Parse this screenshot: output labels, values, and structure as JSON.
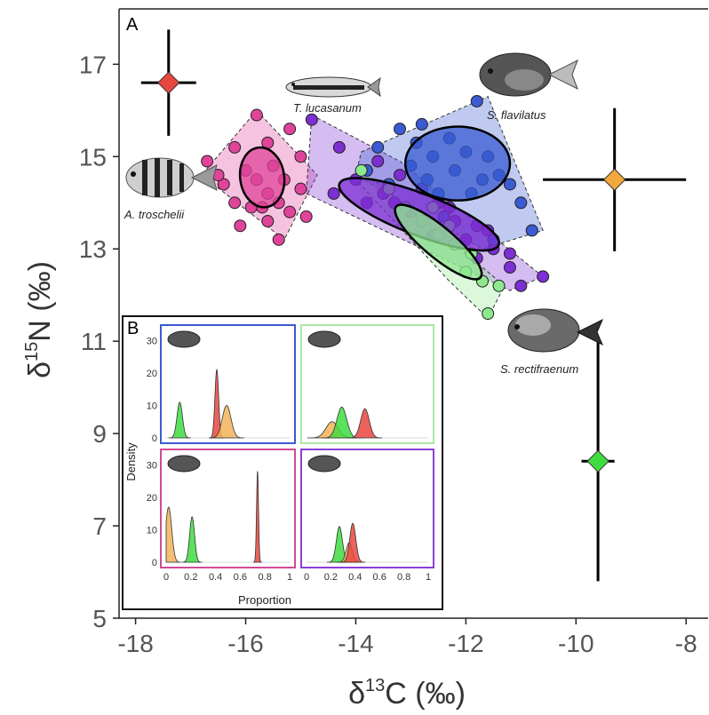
{
  "chart_data": [
    {
      "panel": "A",
      "type": "scatter",
      "xlabel": "δ13C (‰)",
      "ylabel": "δ15N (‰)",
      "xlim": [
        -18.3,
        -7.6
      ],
      "ylim": [
        5,
        18.2
      ],
      "xticks": [
        -18,
        -16,
        -14,
        -12,
        -10,
        -8
      ],
      "yticks": [
        5,
        7,
        9,
        11,
        13,
        15,
        17
      ],
      "xtick_labels": [
        "-18",
        "-16",
        "-14",
        "-12",
        "-10",
        "-8"
      ],
      "ytick_labels": [
        "5",
        "7",
        "9",
        "11",
        "13",
        "15",
        "17"
      ],
      "species": [
        {
          "name": "A. troschelii",
          "color": "#e0449a",
          "points": [
            [
              -15.8,
              15.9
            ],
            [
              -15.2,
              15.6
            ],
            [
              -16.2,
              15.2
            ],
            [
              -15.6,
              15.3
            ],
            [
              -15.0,
              15.0
            ],
            [
              -16.7,
              14.9
            ],
            [
              -16.0,
              14.7
            ],
            [
              -15.5,
              14.8
            ],
            [
              -15.3,
              14.5
            ],
            [
              -15.8,
              14.5
            ],
            [
              -16.4,
              14.4
            ],
            [
              -15.0,
              14.3
            ],
            [
              -16.2,
              14.0
            ],
            [
              -15.6,
              14.2
            ],
            [
              -15.4,
              14.0
            ],
            [
              -15.9,
              13.9
            ],
            [
              -15.2,
              13.8
            ],
            [
              -14.9,
              13.7
            ],
            [
              -15.6,
              13.6
            ],
            [
              -16.1,
              13.5
            ],
            [
              -15.4,
              13.2
            ],
            [
              -16.5,
              14.6
            ],
            [
              -15.7,
              13.9
            ]
          ],
          "hull": [
            [
              -15.8,
              16.0
            ],
            [
              -14.7,
              14.6
            ],
            [
              -15.3,
              13.2
            ],
            [
              -16.8,
              14.6
            ]
          ],
          "ellipse": {
            "cx": -15.7,
            "cy": 14.55,
            "rx": 0.4,
            "ry": 0.65,
            "angle": 8
          }
        },
        {
          "name": "T. lucasanum",
          "color": "#7c2fd3",
          "points": [
            [
              -14.8,
              15.8
            ],
            [
              -14.3,
              15.2
            ],
            [
              -13.6,
              14.9
            ],
            [
              -13.2,
              14.6
            ],
            [
              -14.0,
              14.5
            ],
            [
              -12.8,
              14.3
            ],
            [
              -13.5,
              14.2
            ],
            [
              -12.5,
              14.0
            ],
            [
              -13.0,
              13.8
            ],
            [
              -12.2,
              13.6
            ],
            [
              -11.8,
              13.5
            ],
            [
              -12.0,
              13.2
            ],
            [
              -11.5,
              13.0
            ],
            [
              -11.2,
              12.6
            ],
            [
              -11.0,
              12.2
            ],
            [
              -10.6,
              12.4
            ],
            [
              -11.8,
              12.8
            ],
            [
              -12.6,
              13.3
            ],
            [
              -13.8,
              14.0
            ],
            [
              -14.4,
              14.2
            ],
            [
              -13.3,
              14.0
            ],
            [
              -12.3,
              13.9
            ],
            [
              -11.6,
              13.4
            ],
            [
              -11.2,
              12.9
            ]
          ],
          "hull": [
            [
              -14.8,
              15.9
            ],
            [
              -13.2,
              14.9
            ],
            [
              -10.6,
              12.4
            ],
            [
              -11.2,
              12.1
            ],
            [
              -14.9,
              14.2
            ]
          ],
          "ellipse": {
            "cx": -12.85,
            "cy": 13.75,
            "rx": 1.55,
            "ry": 0.45,
            "angle": -21
          }
        },
        {
          "name": "S. flavilatus",
          "color": "#3a5bd1",
          "points": [
            [
              -11.8,
              16.2
            ],
            [
              -13.2,
              15.6
            ],
            [
              -12.8,
              15.7
            ],
            [
              -12.3,
              15.4
            ],
            [
              -13.6,
              15.2
            ],
            [
              -12.0,
              15.1
            ],
            [
              -11.6,
              15.0
            ],
            [
              -12.6,
              15.0
            ],
            [
              -13.0,
              14.8
            ],
            [
              -12.2,
              14.7
            ],
            [
              -11.4,
              14.6
            ],
            [
              -13.4,
              14.4
            ],
            [
              -12.7,
              14.5
            ],
            [
              -11.2,
              14.4
            ],
            [
              -11.9,
              14.2
            ],
            [
              -11.0,
              14.0
            ],
            [
              -10.8,
              13.4
            ],
            [
              -11.5,
              13.2
            ],
            [
              -12.4,
              13.7
            ],
            [
              -13.8,
              14.7
            ],
            [
              -12.5,
              14.2
            ],
            [
              -11.7,
              14.5
            ],
            [
              -12.9,
              15.3
            ]
          ],
          "hull": [
            [
              -13.9,
              15.1
            ],
            [
              -11.6,
              16.3
            ],
            [
              -10.6,
              13.4
            ],
            [
              -11.7,
              13.0
            ],
            [
              -14.0,
              14.6
            ]
          ],
          "ellipse": {
            "cx": -12.15,
            "cy": 14.85,
            "rx": 0.95,
            "ry": 0.8,
            "angle": 0
          }
        },
        {
          "name": "S. rectifraenum",
          "color": "#8ee88e",
          "points": [
            [
              -13.9,
              14.7
            ],
            [
              -13.4,
              14.3
            ],
            [
              -13.1,
              13.9
            ],
            [
              -12.8,
              13.6
            ],
            [
              -12.5,
              13.3
            ],
            [
              -12.2,
              13.1
            ],
            [
              -11.9,
              12.9
            ],
            [
              -12.0,
              12.5
            ],
            [
              -11.7,
              12.3
            ],
            [
              -11.4,
              12.2
            ],
            [
              -11.6,
              11.6
            ],
            [
              -12.6,
              13.9
            ],
            [
              -12.3,
              13.5
            ]
          ],
          "hull": [
            [
              -13.9,
              14.7
            ],
            [
              -12.0,
              12.9
            ],
            [
              -11.3,
              12.2
            ],
            [
              -11.6,
              11.5
            ],
            [
              -12.3,
              12.3
            ],
            [
              -14.0,
              14.5
            ]
          ],
          "ellipse": {
            "cx": -12.5,
            "cy": 13.15,
            "rx": 1.0,
            "ry": 0.33,
            "angle": -40
          }
        }
      ],
      "sources": [
        {
          "name": "red source",
          "color": "#e8473f",
          "x": -17.4,
          "y": 16.6,
          "x_err": 0.5,
          "y_err": 1.15
        },
        {
          "name": "orange source",
          "color": "#f2a83b",
          "x": -9.3,
          "y": 14.5,
          "x_err": 1.3,
          "y_err": 1.55
        },
        {
          "name": "green source",
          "color": "#3fdc3f",
          "x": -9.6,
          "y": 8.4,
          "x_err": 0.3,
          "y_err": 2.6
        }
      ]
    },
    {
      "panel": "B",
      "type": "area",
      "xlabel": "Proportion",
      "ylabel": "Density",
      "xticks": [
        "0",
        "0.2",
        "0.4",
        "0.6",
        "0.8",
        "1"
      ],
      "yticks": [
        "0",
        "10",
        "20",
        "30"
      ],
      "subpanels": [
        {
          "species": "S. flavilatus",
          "border": "#3a5bd1",
          "densities": [
            {
              "color": "#3fdc3f",
              "mean": 0.11,
              "sd": 0.022,
              "peak": 11
            },
            {
              "color": "#e8473f",
              "mean": 0.41,
              "sd": 0.015,
              "peak": 21
            },
            {
              "color": "#f2b35a",
              "mean": 0.49,
              "sd": 0.035,
              "peak": 10
            }
          ]
        },
        {
          "species": "S. rectifraenum",
          "border": "#a8e8a8",
          "densities": [
            {
              "color": "#f2b35a",
              "mean": 0.21,
              "sd": 0.05,
              "peak": 5
            },
            {
              "color": "#3fdc3f",
              "mean": 0.29,
              "sd": 0.04,
              "peak": 9.5
            },
            {
              "color": "#e8473f",
              "mean": 0.48,
              "sd": 0.035,
              "peak": 9
            }
          ]
        },
        {
          "species": "A. troschelii",
          "border": "#d14a94",
          "densities": [
            {
              "color": "#f2b35a",
              "mean": 0.02,
              "sd": 0.025,
              "peak": 17
            },
            {
              "color": "#3fdc3f",
              "mean": 0.21,
              "sd": 0.02,
              "peak": 14
            },
            {
              "color": "#e8473f",
              "mean": 0.74,
              "sd": 0.008,
              "peak": 28
            }
          ]
        },
        {
          "species": "T. lucasanum",
          "border": "#8b3fd6",
          "densities": [
            {
              "color": "#3fdc3f",
              "mean": 0.27,
              "sd": 0.025,
              "peak": 11
            },
            {
              "color": "#f2b35a",
              "mean": 0.35,
              "sd": 0.025,
              "peak": 6
            },
            {
              "color": "#e8473f",
              "mean": 0.38,
              "sd": 0.025,
              "peak": 12
            }
          ]
        }
      ]
    }
  ],
  "labels": {
    "panel_a": "A",
    "panel_b": "B",
    "a_troschelii": "A. troschelii",
    "t_lucasanum": "T. lucasanum",
    "s_flavilatus": "S. flavilatus",
    "s_rectifraenum": "S. rectifraenum",
    "x_axis": "δ13C (‰)",
    "y_axis": "δ15N (‰)",
    "inset_x": "Proportion",
    "inset_y": "Density"
  }
}
